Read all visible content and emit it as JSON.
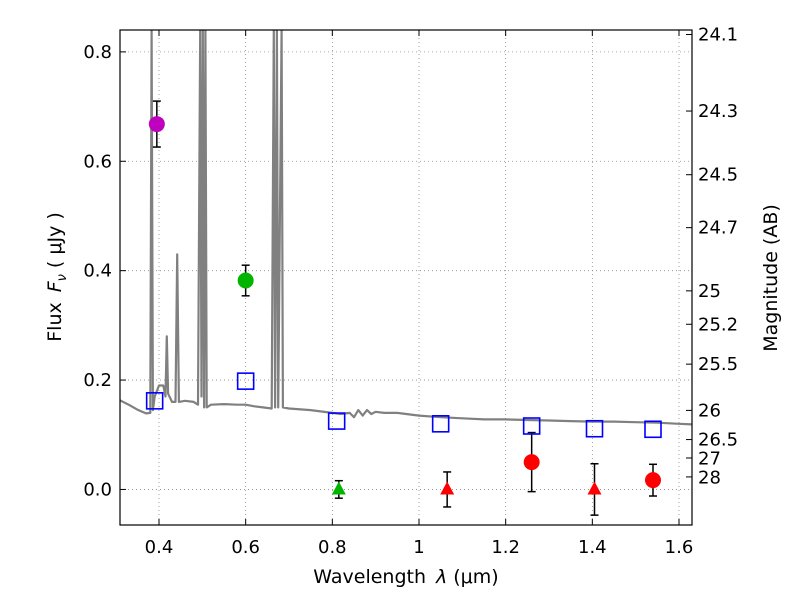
{
  "chart_data": {
    "type": "scatter",
    "xlabel_main": "Wavelength",
    "xlabel_symbol": "λ",
    "xlabel_units": "(μm)",
    "ylabel_main": "Flux",
    "ylabel_symbol": "F",
    "ylabel_sub": "ν",
    "ylabel_units": "( μJy )",
    "y2label": "Magnitude (AB)",
    "xlim": [
      0.31,
      1.63
    ],
    "ylim": [
      -0.065,
      0.84
    ],
    "grid": true,
    "x_ticks": [
      0.4,
      0.6,
      0.8,
      1.0,
      1.2,
      1.4,
      1.6
    ],
    "x_tick_labels": [
      "0.4",
      "0.6",
      "0.8",
      "1",
      "1.2",
      "1.4",
      "1.6"
    ],
    "y_ticks": [
      0.0,
      0.2,
      0.4,
      0.6,
      0.8
    ],
    "y_tick_labels": [
      "0.0",
      "0.2",
      "0.4",
      "0.6",
      "0.8"
    ],
    "mag_ticks": [
      "24.1",
      "24.3",
      "24.5",
      "24.7",
      "25",
      "25.2",
      "25.5",
      "26",
      "26.5",
      "27",
      "28"
    ],
    "colors": {
      "spectrum": "#808080",
      "magenta": "#bf00bf",
      "green": "#00b400",
      "red": "#ff0000",
      "blue": "#0000ff",
      "errorbar": "#000000",
      "grid": "#888888"
    },
    "series": [
      {
        "name": "model-spectrum",
        "kind": "line",
        "color": "#808080",
        "points": [
          [
            0.31,
            0.163
          ],
          [
            0.33,
            0.155
          ],
          [
            0.35,
            0.146
          ],
          [
            0.37,
            0.139
          ],
          [
            0.38,
            0.14
          ],
          [
            0.383,
            0.84
          ],
          [
            0.386,
            0.145
          ],
          [
            0.39,
            0.17
          ],
          [
            0.4,
            0.19
          ],
          [
            0.41,
            0.19
          ],
          [
            0.415,
            0.17
          ],
          [
            0.418,
            0.28
          ],
          [
            0.421,
            0.175
          ],
          [
            0.43,
            0.16
          ],
          [
            0.438,
            0.16
          ],
          [
            0.442,
            0.43
          ],
          [
            0.446,
            0.16
          ],
          [
            0.46,
            0.162
          ],
          [
            0.48,
            0.16
          ],
          [
            0.49,
            0.155
          ],
          [
            0.495,
            0.84
          ],
          [
            0.498,
            0.17
          ],
          [
            0.501,
            0.84
          ],
          [
            0.504,
            0.15
          ],
          [
            0.507,
            0.84
          ],
          [
            0.51,
            0.15
          ],
          [
            0.52,
            0.155
          ],
          [
            0.55,
            0.156
          ],
          [
            0.58,
            0.155
          ],
          [
            0.6,
            0.155
          ],
          [
            0.62,
            0.152
          ],
          [
            0.64,
            0.15
          ],
          [
            0.66,
            0.148
          ],
          [
            0.665,
            0.84
          ],
          [
            0.668,
            0.15
          ],
          [
            0.672,
            0.84
          ],
          [
            0.675,
            0.15
          ],
          [
            0.683,
            0.84
          ],
          [
            0.686,
            0.15
          ],
          [
            0.7,
            0.148
          ],
          [
            0.75,
            0.145
          ],
          [
            0.8,
            0.14
          ],
          [
            0.82,
            0.138
          ],
          [
            0.84,
            0.14
          ],
          [
            0.85,
            0.132
          ],
          [
            0.86,
            0.145
          ],
          [
            0.87,
            0.135
          ],
          [
            0.88,
            0.145
          ],
          [
            0.89,
            0.138
          ],
          [
            0.9,
            0.142
          ],
          [
            0.92,
            0.14
          ],
          [
            0.95,
            0.14
          ],
          [
            1.0,
            0.135
          ],
          [
            1.05,
            0.132
          ],
          [
            1.1,
            0.13
          ],
          [
            1.15,
            0.128
          ],
          [
            1.2,
            0.128
          ],
          [
            1.25,
            0.127
          ],
          [
            1.3,
            0.126
          ],
          [
            1.35,
            0.125
          ],
          [
            1.4,
            0.124
          ],
          [
            1.45,
            0.124
          ],
          [
            1.5,
            0.123
          ],
          [
            1.55,
            0.122
          ],
          [
            1.6,
            0.12
          ],
          [
            1.63,
            0.119
          ]
        ]
      },
      {
        "name": "photometry-circles",
        "kind": "circle",
        "points": [
          {
            "x": 0.395,
            "y": 0.668,
            "err": 0.042,
            "color": "#bf00bf"
          },
          {
            "x": 0.6,
            "y": 0.382,
            "err": 0.028,
            "color": "#00b400"
          },
          {
            "x": 1.26,
            "y": 0.05,
            "err": 0.054,
            "color": "#ff0000"
          },
          {
            "x": 1.54,
            "y": 0.017,
            "err": 0.029,
            "color": "#ff0000"
          }
        ]
      },
      {
        "name": "upper-limits-triangles",
        "kind": "triangle",
        "points": [
          {
            "x": 0.815,
            "y": 0.0,
            "err": 0.016,
            "color": "#00b400"
          },
          {
            "x": 1.065,
            "y": 0.0,
            "err": 0.032,
            "color": "#ff0000"
          },
          {
            "x": 1.405,
            "y": 0.0,
            "err": 0.047,
            "color": "#ff0000"
          }
        ]
      },
      {
        "name": "model-fluxes-squares",
        "kind": "square",
        "points": [
          {
            "x": 0.39,
            "y": 0.162,
            "color": "#0000ff"
          },
          {
            "x": 0.6,
            "y": 0.198,
            "color": "#0000ff"
          },
          {
            "x": 0.81,
            "y": 0.125,
            "color": "#0000ff"
          },
          {
            "x": 1.05,
            "y": 0.12,
            "color": "#0000ff"
          },
          {
            "x": 1.26,
            "y": 0.116,
            "color": "#0000ff"
          },
          {
            "x": 1.405,
            "y": 0.111,
            "color": "#0000ff"
          },
          {
            "x": 1.54,
            "y": 0.11,
            "color": "#0000ff"
          }
        ]
      }
    ]
  }
}
